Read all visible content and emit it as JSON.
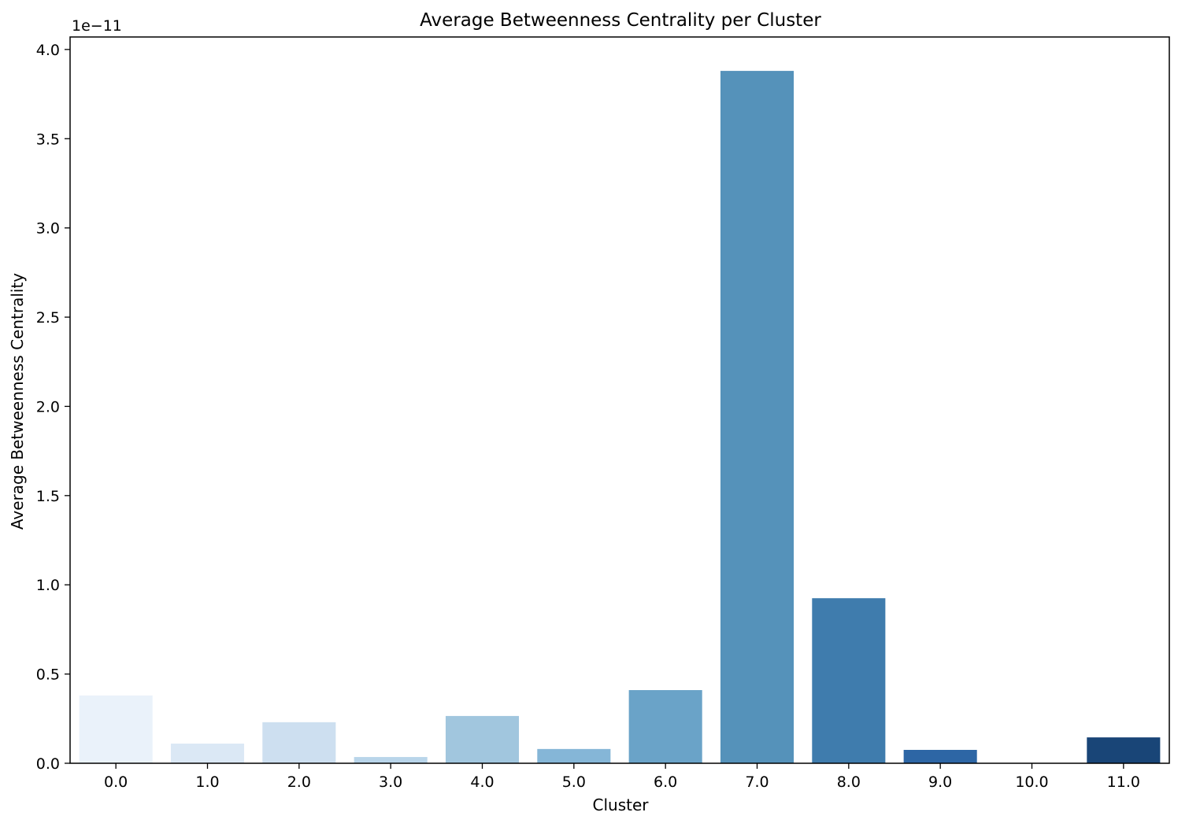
{
  "chart_data": {
    "type": "bar",
    "title": "Average Betweenness Centrality per Cluster",
    "xlabel": "Cluster",
    "ylabel": "Average Betweenness Centrality",
    "y_offset_label": "1e−11",
    "y_scale_factor": 1e-11,
    "categories": [
      "0.0",
      "1.0",
      "2.0",
      "3.0",
      "4.0",
      "5.0",
      "6.0",
      "7.0",
      "8.0",
      "9.0",
      "10.0",
      "11.0"
    ],
    "values": [
      3.8e-12,
      1.1e-12,
      2.3e-12,
      3.5e-13,
      2.65e-12,
      8e-13,
      4.1e-12,
      3.88e-11,
      9.25e-12,
      7.5e-13,
      0.0,
      1.45e-12
    ],
    "ylim": [
      0,
      4.07e-11
    ],
    "yticks": [
      0.0,
      0.5,
      1.0,
      1.5,
      2.0,
      2.5,
      3.0,
      3.5,
      4.0
    ],
    "ytick_labels": [
      "0.0",
      "0.5",
      "1.0",
      "1.5",
      "2.0",
      "2.5",
      "3.0",
      "3.5",
      "4.0"
    ],
    "grid": false,
    "palette": "Blues",
    "colors": [
      "#eaf2fa",
      "#dbe8f5",
      "#cddff0",
      "#b9d5ea",
      "#a1c6de",
      "#85b6d7",
      "#6aa3c8",
      "#5592ba",
      "#3f7cad",
      "#2d66a5",
      "#245aa0",
      "#194577"
    ]
  }
}
